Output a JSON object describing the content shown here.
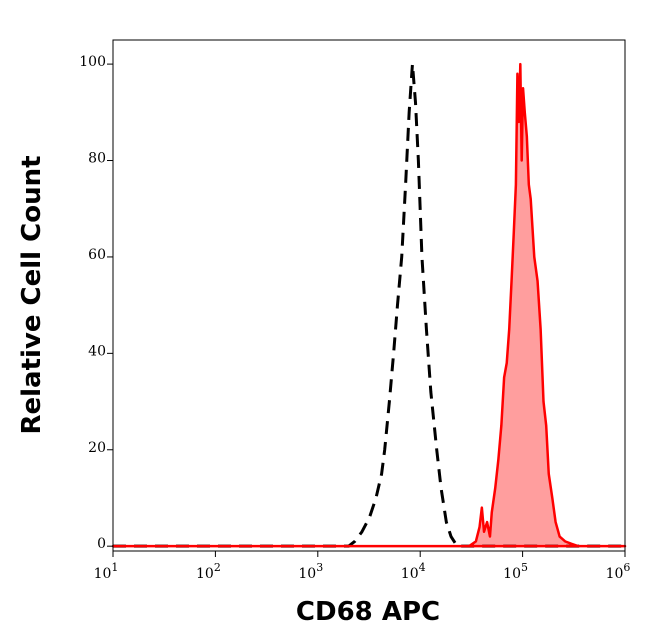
{
  "chart_data": {
    "type": "histogram-overlay",
    "xlabel": "CD68 APC",
    "ylabel": "Relative Cell Count",
    "xscale": "log",
    "xlim": [
      10,
      1000000
    ],
    "ylim": [
      -1,
      105
    ],
    "xticks": [
      {
        "value": 10,
        "label": "10",
        "superscript": "1"
      },
      {
        "value": 100,
        "label": "10",
        "superscript": "2"
      },
      {
        "value": 1000,
        "label": "10",
        "superscript": "3"
      },
      {
        "value": 10000,
        "label": "10",
        "superscript": "4"
      },
      {
        "value": 100000,
        "label": "10",
        "superscript": "5"
      },
      {
        "value": 1000000,
        "label": "10",
        "superscript": "6"
      }
    ],
    "yticks": [
      0,
      20,
      40,
      60,
      80,
      100
    ],
    "series": [
      {
        "color": "#000000",
        "dashed": true,
        "filled": false,
        "x": [
          10,
          2000,
          2300,
          2700,
          3200,
          3700,
          4200,
          4500,
          5000,
          5500,
          6000,
          6600,
          7200,
          7800,
          8400,
          9000,
          9600,
          10400,
          11500,
          12700,
          14500,
          16000,
          18000,
          20000,
          23000,
          1000000
        ],
        "values": [
          0,
          0,
          1,
          3,
          6,
          10,
          15,
          20,
          30,
          40,
          50,
          60,
          75,
          90,
          100,
          92,
          80,
          60,
          45,
          32,
          20,
          12,
          5,
          2,
          0,
          0
        ]
      },
      {
        "color": "#ff0000",
        "dashed": false,
        "filled": true,
        "x": [
          10,
          30000,
          35000,
          38000,
          40000,
          42000,
          45000,
          48000,
          50000,
          54000,
          58000,
          62000,
          66000,
          70000,
          74000,
          78000,
          82000,
          86000,
          89000,
          92000,
          95000,
          98000,
          101000,
          105000,
          110000,
          115000,
          120000,
          130000,
          140000,
          150000,
          160000,
          170000,
          180000,
          195000,
          210000,
          230000,
          260000,
          300000,
          350000,
          1000000
        ],
        "values": [
          0,
          0,
          1,
          4,
          8,
          3,
          5,
          2,
          7,
          12,
          18,
          25,
          35,
          38,
          45,
          55,
          65,
          75,
          98,
          88,
          100,
          80,
          95,
          90,
          85,
          75,
          72,
          60,
          55,
          45,
          30,
          25,
          15,
          10,
          5,
          2,
          1,
          0.5,
          0,
          0
        ]
      }
    ]
  }
}
